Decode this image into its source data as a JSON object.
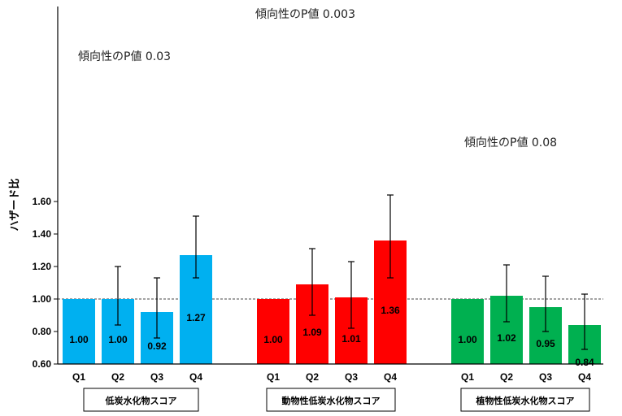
{
  "chart_data": {
    "type": "bar",
    "ylabel": "ハザード比",
    "ylim": [
      0.6,
      1.7
    ],
    "yticks": [
      "0.60",
      "0.80",
      "1.00",
      "1.20",
      "1.40",
      "1.60"
    ],
    "ytick_values": [
      0.6,
      0.8,
      1.0,
      1.2,
      1.4,
      1.6
    ],
    "reference_line": 1.0,
    "groups": [
      {
        "label": "低炭水化物スコア",
        "color": "#00B0F0",
        "annotation": "傾向性のP値 0.03",
        "categories": [
          "Q1",
          "Q2",
          "Q3",
          "Q4"
        ],
        "values": [
          1.0,
          1.0,
          0.92,
          1.27
        ],
        "value_labels": [
          "1.00",
          "1.00",
          "0.92",
          "1.27"
        ],
        "ci_lower": [
          null,
          0.84,
          0.76,
          1.13
        ],
        "ci_upper": [
          null,
          1.2,
          1.13,
          1.51
        ]
      },
      {
        "label": "動物性低炭水化物スコア",
        "color": "#FF0000",
        "annotation": "傾向性のP値 0.003",
        "categories": [
          "Q1",
          "Q2",
          "Q3",
          "Q4"
        ],
        "values": [
          1.0,
          1.09,
          1.01,
          1.36
        ],
        "value_labels": [
          "1.00",
          "1.09",
          "1.01",
          "1.36"
        ],
        "ci_lower": [
          null,
          0.9,
          0.82,
          1.13
        ],
        "ci_upper": [
          null,
          1.31,
          1.23,
          1.64
        ]
      },
      {
        "label": "植物性低炭水化物スコア",
        "color": "#00B050",
        "annotation": "傾向性のP値 0.08",
        "categories": [
          "Q1",
          "Q2",
          "Q3",
          "Q4"
        ],
        "values": [
          1.0,
          1.02,
          0.95,
          0.84
        ],
        "value_labels": [
          "1.00",
          "1.02",
          "0.95",
          "0.84"
        ],
        "ci_lower": [
          null,
          0.86,
          0.8,
          0.69
        ],
        "ci_upper": [
          null,
          1.21,
          1.14,
          1.03
        ]
      }
    ]
  }
}
